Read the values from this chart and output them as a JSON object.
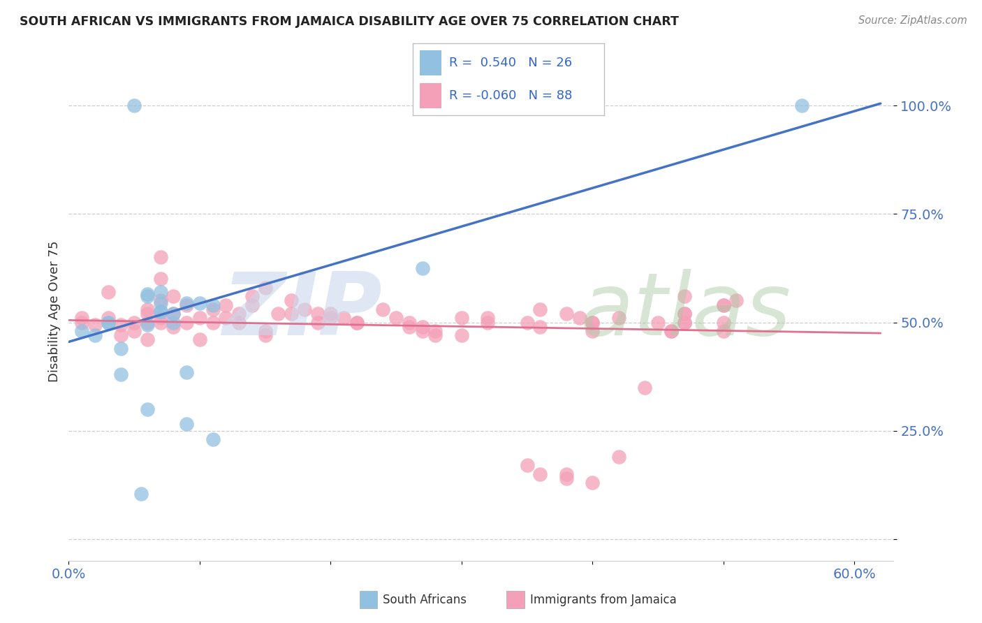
{
  "title": "SOUTH AFRICAN VS IMMIGRANTS FROM JAMAICA DISABILITY AGE OVER 75 CORRELATION CHART",
  "source": "Source: ZipAtlas.com",
  "ylabel": "Disability Age Over 75",
  "xlim": [
    0.0,
    0.63
  ],
  "ylim": [
    -0.05,
    1.1
  ],
  "yticks": [
    0.0,
    0.25,
    0.5,
    0.75,
    1.0
  ],
  "ytick_labels": [
    "",
    "25.0%",
    "50.0%",
    "75.0%",
    "100.0%"
  ],
  "xticks": [
    0.0,
    0.1,
    0.2,
    0.3,
    0.4,
    0.5,
    0.6
  ],
  "xtick_labels": [
    "0.0%",
    "",
    "",
    "",
    "",
    "",
    "60.0%"
  ],
  "blue_color": "#92c0e0",
  "pink_color": "#f4a0b8",
  "blue_line_color": "#4472c4",
  "pink_line_color": "#e07090",
  "tick_color": "#4472c4",
  "legend_r1": "R =  0.540",
  "legend_n1": "N = 26",
  "legend_r2": "R = -0.060",
  "legend_n2": "N = 88",
  "blue_x": [
    0.01,
    0.055,
    0.27,
    0.02,
    0.03,
    0.04,
    0.06,
    0.07,
    0.08,
    0.09,
    0.06,
    0.07,
    0.03,
    0.07,
    0.1,
    0.08,
    0.07,
    0.09,
    0.11,
    0.06,
    0.05,
    0.04,
    0.56,
    0.06,
    0.09,
    0.11
  ],
  "blue_y": [
    0.48,
    0.105,
    0.625,
    0.47,
    0.5,
    0.44,
    0.495,
    0.57,
    0.52,
    0.385,
    0.565,
    0.545,
    0.5,
    0.525,
    0.545,
    0.5,
    0.525,
    0.545,
    0.54,
    0.56,
    1.0,
    0.38,
    1.0,
    0.3,
    0.265,
    0.23
  ],
  "pink_x": [
    0.01,
    0.01,
    0.02,
    0.03,
    0.03,
    0.04,
    0.04,
    0.05,
    0.05,
    0.06,
    0.06,
    0.06,
    0.06,
    0.07,
    0.07,
    0.07,
    0.07,
    0.07,
    0.08,
    0.08,
    0.08,
    0.09,
    0.09,
    0.1,
    0.1,
    0.11,
    0.11,
    0.12,
    0.12,
    0.13,
    0.13,
    0.14,
    0.14,
    0.15,
    0.15,
    0.15,
    0.17,
    0.17,
    0.19,
    0.19,
    0.2,
    0.21,
    0.22,
    0.24,
    0.25,
    0.26,
    0.26,
    0.27,
    0.27,
    0.28,
    0.28,
    0.3,
    0.3,
    0.32,
    0.32,
    0.35,
    0.36,
    0.36,
    0.38,
    0.38,
    0.39,
    0.4,
    0.4,
    0.42,
    0.44,
    0.45,
    0.46,
    0.47,
    0.47,
    0.5,
    0.5,
    0.5,
    0.47,
    0.51,
    0.4,
    0.46,
    0.47,
    0.47,
    0.5,
    0.35,
    0.36,
    0.38,
    0.4,
    0.42,
    0.2,
    0.22,
    0.18,
    0.16
  ],
  "pink_y": [
    0.5,
    0.51,
    0.495,
    0.51,
    0.57,
    0.495,
    0.47,
    0.5,
    0.48,
    0.52,
    0.5,
    0.53,
    0.46,
    0.51,
    0.6,
    0.65,
    0.55,
    0.5,
    0.56,
    0.49,
    0.52,
    0.54,
    0.5,
    0.51,
    0.46,
    0.53,
    0.5,
    0.51,
    0.54,
    0.52,
    0.5,
    0.56,
    0.54,
    0.58,
    0.48,
    0.47,
    0.55,
    0.52,
    0.52,
    0.5,
    0.52,
    0.51,
    0.5,
    0.53,
    0.51,
    0.49,
    0.5,
    0.49,
    0.48,
    0.47,
    0.48,
    0.47,
    0.51,
    0.51,
    0.5,
    0.5,
    0.49,
    0.53,
    0.52,
    0.15,
    0.51,
    0.5,
    0.48,
    0.51,
    0.35,
    0.5,
    0.48,
    0.5,
    0.52,
    0.54,
    0.48,
    0.5,
    0.56,
    0.55,
    0.5,
    0.48,
    0.5,
    0.52,
    0.54,
    0.17,
    0.15,
    0.14,
    0.13,
    0.19,
    0.51,
    0.5,
    0.53,
    0.52
  ],
  "blue_trend_x0": 0.0,
  "blue_trend_y0": 0.455,
  "blue_trend_x1": 0.62,
  "blue_trend_y1": 1.005,
  "pink_trend_x0": 0.0,
  "pink_trend_y0": 0.505,
  "pink_trend_x1": 0.62,
  "pink_trend_y1": 0.475
}
